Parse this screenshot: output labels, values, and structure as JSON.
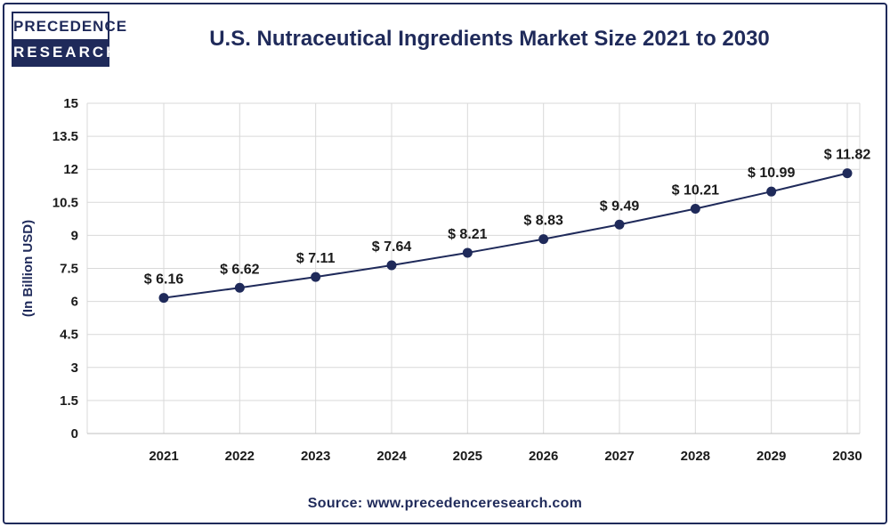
{
  "logo": {
    "line1": "PRECEDENCE",
    "line2": "RESEARCH"
  },
  "source": "Source: www.precedenceresearch.com",
  "colors": {
    "brand": "#1f2a5a",
    "line": "#1f2a5a",
    "grid": "#d9d9d9"
  },
  "chart_data": {
    "type": "line",
    "title": "U.S. Nutraceutical Ingredients Market Size 2021 to 2030",
    "xlabel": "",
    "ylabel": "(In Billion USD)",
    "ylim": [
      0,
      15
    ],
    "yticks": [
      0,
      1.5,
      3,
      4.5,
      6,
      7.5,
      9,
      10.5,
      12,
      13.5,
      15
    ],
    "ytick_labels": [
      "0",
      "1.5",
      "3",
      "4.5",
      "6",
      "7.5",
      "9",
      "10.5",
      "12",
      "13.5",
      "15"
    ],
    "categories": [
      "2021",
      "2022",
      "2023",
      "2024",
      "2025",
      "2026",
      "2027",
      "2028",
      "2029",
      "2030"
    ],
    "series": [
      {
        "values": [
          6.16,
          6.62,
          7.11,
          7.64,
          8.21,
          8.83,
          9.49,
          10.21,
          10.99,
          11.82
        ],
        "labels": [
          "$ 6.16",
          "$ 6.62",
          "$ 7.11",
          "$ 7.64",
          "$ 8.21",
          "$ 8.83",
          "$ 9.49",
          "$ 10.21",
          "$ 10.99",
          "$ 11.82"
        ]
      }
    ],
    "grid": true,
    "legend": "none"
  }
}
